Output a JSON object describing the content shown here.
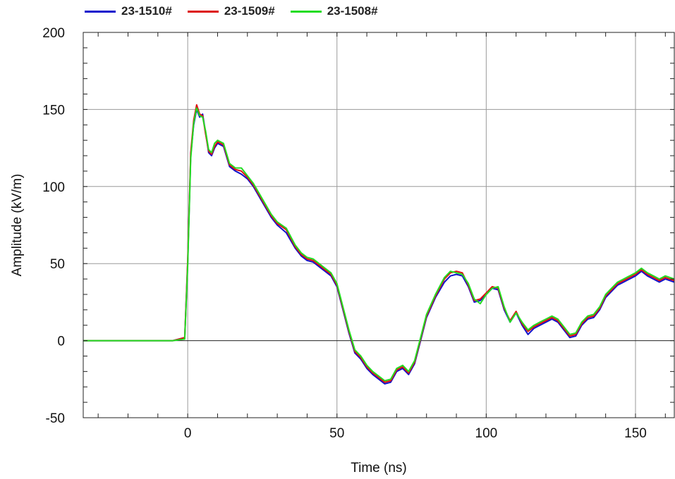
{
  "chart_data": {
    "type": "line",
    "title": "",
    "xlabel": "Time (ns)",
    "ylabel": "Amplitude (kV/m)",
    "xlim": [
      -35,
      163
    ],
    "ylim": [
      -50,
      200
    ],
    "xticks": [
      0,
      50,
      100,
      150
    ],
    "yticks": [
      -50,
      0,
      50,
      100,
      150,
      200
    ],
    "grid": true,
    "legend_position": "top",
    "x": [
      -35,
      -5,
      -1,
      0,
      1,
      2,
      3,
      4,
      5,
      6,
      7,
      8,
      9,
      10,
      12,
      14,
      16,
      18,
      20,
      22,
      25,
      28,
      30,
      33,
      36,
      38,
      40,
      42,
      44,
      46,
      48,
      50,
      52,
      54,
      56,
      58,
      60,
      62,
      64,
      66,
      68,
      70,
      72,
      74,
      76,
      78,
      80,
      83,
      86,
      88,
      90,
      92,
      94,
      96,
      98,
      100,
      102,
      104,
      106,
      108,
      110,
      112,
      114,
      116,
      118,
      120,
      122,
      124,
      126,
      128,
      130,
      132,
      134,
      136,
      138,
      140,
      142,
      144,
      146,
      148,
      150,
      152,
      154,
      156,
      158,
      160,
      163
    ],
    "series": [
      {
        "name": "23-1510#",
        "color": "#1111cc",
        "values": [
          0,
          0,
          2,
          50,
          120,
          140,
          150,
          145,
          147,
          135,
          122,
          120,
          125,
          128,
          126,
          113,
          110,
          108,
          105,
          100,
          90,
          80,
          75,
          70,
          60,
          55,
          52,
          51,
          48,
          45,
          42,
          35,
          20,
          5,
          -8,
          -12,
          -18,
          -22,
          -25,
          -28,
          -27,
          -20,
          -18,
          -22,
          -15,
          0,
          15,
          28,
          38,
          42,
          43,
          42,
          35,
          25,
          26,
          30,
          34,
          33,
          20,
          12,
          18,
          10,
          4,
          8,
          10,
          12,
          14,
          12,
          7,
          2,
          3,
          10,
          14,
          15,
          20,
          28,
          32,
          36,
          38,
          40,
          42,
          45,
          42,
          40,
          38,
          40,
          38
        ]
      },
      {
        "name": "23-1509#",
        "color": "#dd1111",
        "values": [
          0,
          0,
          2,
          52,
          122,
          143,
          153,
          147,
          146,
          134,
          123,
          121,
          126,
          129,
          127,
          114,
          111,
          110,
          106,
          101,
          91,
          81,
          76,
          72,
          61,
          56,
          53,
          52,
          49,
          46,
          43,
          36,
          21,
          6,
          -7,
          -11,
          -17,
          -21,
          -24,
          -27,
          -26,
          -19,
          -17,
          -21,
          -14,
          1,
          16,
          29,
          40,
          44,
          45,
          44,
          36,
          26,
          27,
          31,
          35,
          34,
          21,
          13,
          19,
          11,
          6,
          9,
          11,
          13,
          15,
          13,
          8,
          3,
          4,
          11,
          15,
          16,
          21,
          29,
          33,
          37,
          39,
          41,
          43,
          46,
          43,
          41,
          39,
          41,
          39
        ]
      },
      {
        "name": "23-1508#",
        "color": "#22dd22",
        "values": [
          0,
          0,
          1,
          48,
          118,
          141,
          151,
          146,
          145,
          136,
          124,
          122,
          128,
          130,
          128,
          115,
          112,
          112,
          107,
          102,
          92,
          82,
          77,
          73,
          62,
          57,
          54,
          53,
          50,
          47,
          44,
          37,
          22,
          7,
          -6,
          -10,
          -16,
          -20,
          -23,
          -26,
          -25,
          -18,
          -16,
          -20,
          -13,
          2,
          17,
          30,
          41,
          45,
          44,
          43,
          37,
          27,
          24,
          30,
          34,
          35,
          22,
          12,
          18,
          12,
          7,
          10,
          12,
          14,
          16,
          14,
          9,
          4,
          5,
          12,
          16,
          17,
          22,
          30,
          34,
          38,
          40,
          42,
          44,
          47,
          44,
          42,
          40,
          42,
          40
        ]
      }
    ]
  }
}
